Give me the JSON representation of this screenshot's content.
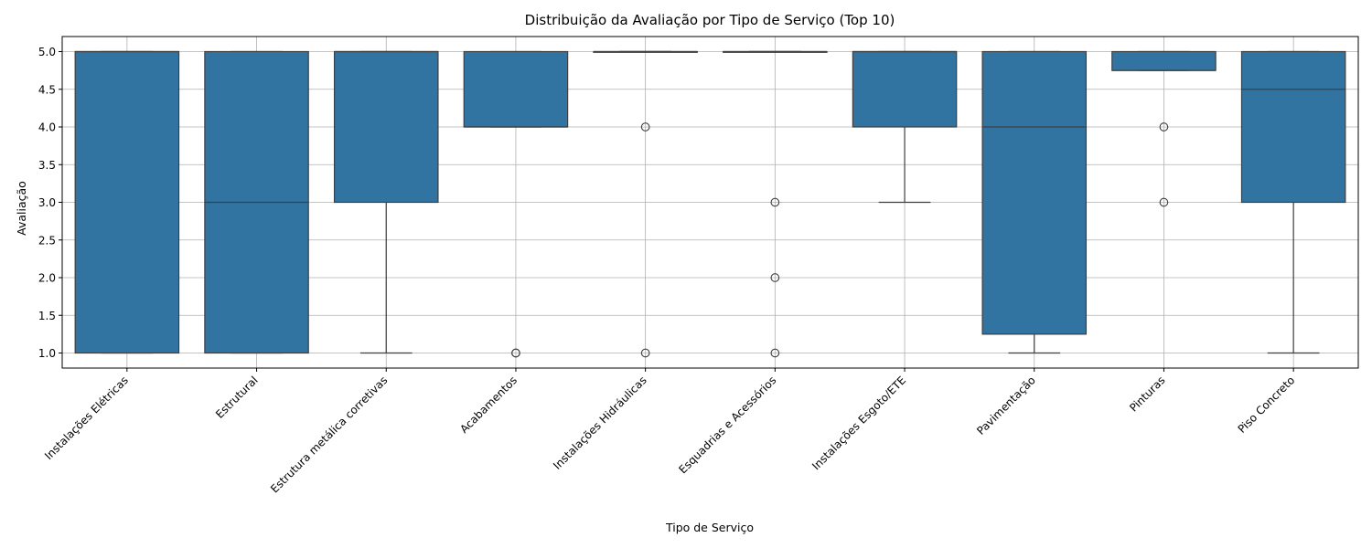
{
  "chart_data": {
    "type": "box",
    "title": "Distribuição da Avaliação por Tipo de Serviço (Top 10)",
    "xlabel": "Tipo de Serviço",
    "ylabel": "Avaliação",
    "ylim": [
      0.8,
      5.2
    ],
    "yticks": [
      "1.0",
      "1.5",
      "2.0",
      "2.5",
      "3.0",
      "3.5",
      "4.0",
      "4.5",
      "5.0"
    ],
    "grid": true,
    "box_color": "#3274a1",
    "categories": [
      "Instalações Elétricas",
      "Estrutural",
      "Estrutura metálica corretivas",
      "Acabamentos",
      "Instalações Hidráulicas",
      "Esquadrias e Acessórios",
      "Instalações Esgoto/ETE",
      "Pavimentação",
      "Pinturas",
      "Piso Concreto"
    ],
    "boxes": [
      {
        "whisker_low": 1.0,
        "q1": 1.0,
        "median": 5.0,
        "q3": 5.0,
        "whisker_high": 5.0,
        "outliers": []
      },
      {
        "whisker_low": 1.0,
        "q1": 1.0,
        "median": 3.0,
        "q3": 5.0,
        "whisker_high": 5.0,
        "outliers": []
      },
      {
        "whisker_low": 1.0,
        "q1": 3.0,
        "median": 5.0,
        "q3": 5.0,
        "whisker_high": 5.0,
        "outliers": []
      },
      {
        "whisker_low": 4.0,
        "q1": 4.0,
        "median": 4.0,
        "q3": 5.0,
        "whisker_high": 5.0,
        "outliers": [
          1.0,
          1.0
        ]
      },
      {
        "whisker_low": 5.0,
        "q1": 5.0,
        "median": 5.0,
        "q3": 5.0,
        "whisker_high": 5.0,
        "outliers": [
          4.0,
          1.0
        ]
      },
      {
        "whisker_low": 5.0,
        "q1": 5.0,
        "median": 5.0,
        "q3": 5.0,
        "whisker_high": 5.0,
        "outliers": [
          3.0,
          2.0,
          1.0
        ]
      },
      {
        "whisker_low": 3.0,
        "q1": 4.0,
        "median": 5.0,
        "q3": 5.0,
        "whisker_high": 5.0,
        "outliers": []
      },
      {
        "whisker_low": 1.0,
        "q1": 1.25,
        "median": 4.0,
        "q3": 5.0,
        "whisker_high": 5.0,
        "outliers": []
      },
      {
        "whisker_low": 4.75,
        "q1": 4.75,
        "median": 4.75,
        "q3": 5.0,
        "whisker_high": 5.0,
        "outliers": [
          4.0,
          3.0
        ]
      },
      {
        "whisker_low": 1.0,
        "q1": 3.0,
        "median": 4.5,
        "q3": 5.0,
        "whisker_high": 5.0,
        "outliers": []
      }
    ]
  }
}
